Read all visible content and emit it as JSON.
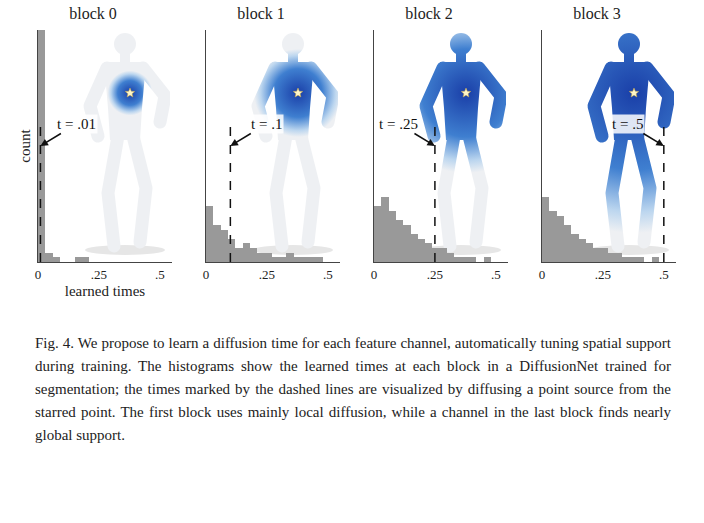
{
  "chart_data": [
    {
      "type": "bar",
      "title": "block 0",
      "xlabel": "learned times",
      "ylabel": "count",
      "bins": [
        0,
        0.03,
        0.06,
        0.09,
        0.12,
        0.15,
        0.18,
        0.21,
        0.24,
        0.27,
        0.3,
        0.33,
        0.36,
        0.39,
        0.42,
        0.45,
        0.48,
        0.51,
        0.54
      ],
      "values": [
        50,
        2,
        1,
        0,
        0,
        1,
        1,
        0,
        0,
        0,
        0,
        0,
        0,
        0,
        0,
        0,
        0,
        0
      ],
      "color": "#999999",
      "xlim": [
        0,
        0.55
      ],
      "xticks": [
        0,
        {
          "value": 0.25,
          "label": ".25"
        },
        {
          "value": 0.5,
          "label": ".5"
        }
      ],
      "ylim": [
        0,
        50
      ],
      "tick_labels": "x",
      "grid": false,
      "marked_time": 0.01,
      "annotation": "t = .01"
    },
    {
      "type": "bar",
      "title": "block 1",
      "bins": [
        0,
        0.03,
        0.06,
        0.09,
        0.12,
        0.15,
        0.18,
        0.21,
        0.24,
        0.27,
        0.3,
        0.33,
        0.36,
        0.39,
        0.42,
        0.45,
        0.48,
        0.51,
        0.54
      ],
      "values": [
        12,
        8,
        7,
        5,
        3,
        4,
        3,
        2,
        2,
        1,
        1,
        2,
        1,
        1,
        1,
        1,
        0,
        0
      ],
      "color": "#999999",
      "xlim": [
        0,
        0.55
      ],
      "xticks": [
        0,
        {
          "value": 0.25,
          "label": ".25"
        },
        {
          "value": 0.5,
          "label": ".5"
        }
      ],
      "ylim": [
        0,
        50
      ],
      "tick_labels": "x",
      "grid": false,
      "marked_time": 0.1,
      "annotation": "t = .1"
    },
    {
      "type": "bar",
      "title": "block 2",
      "bins": [
        0,
        0.03,
        0.06,
        0.09,
        0.12,
        0.15,
        0.18,
        0.21,
        0.24,
        0.27,
        0.3,
        0.33,
        0.36,
        0.39,
        0.42,
        0.45,
        0.48,
        0.51,
        0.54
      ],
      "values": [
        12,
        14,
        11,
        9,
        8,
        6,
        5,
        4,
        3,
        3,
        2,
        1,
        1,
        1,
        0,
        1,
        0,
        0
      ],
      "color": "#999999",
      "xlim": [
        0,
        0.55
      ],
      "xticks": [
        0,
        {
          "value": 0.25,
          "label": ".25"
        },
        {
          "value": 0.5,
          "label": ".5"
        }
      ],
      "ylim": [
        0,
        50
      ],
      "tick_labels": "x",
      "grid": false,
      "marked_time": 0.25,
      "annotation": "t = .25"
    },
    {
      "type": "bar",
      "title": "block 3",
      "bins": [
        0,
        0.03,
        0.06,
        0.09,
        0.12,
        0.15,
        0.18,
        0.21,
        0.24,
        0.27,
        0.3,
        0.33,
        0.36,
        0.39,
        0.42,
        0.45,
        0.48,
        0.51,
        0.54
      ],
      "values": [
        14,
        11,
        10,
        8,
        6,
        5,
        4,
        3,
        3,
        2,
        2,
        1,
        1,
        1,
        0,
        1,
        0,
        0
      ],
      "color": "#999999",
      "xlim": [
        0,
        0.55
      ],
      "xticks": [
        0,
        {
          "value": 0.25,
          "label": ".25"
        },
        {
          "value": 0.5,
          "label": ".5"
        }
      ],
      "ylim": [
        0,
        50
      ],
      "tick_labels": "x",
      "grid": false,
      "marked_time": 0.5,
      "annotation": "t = .5"
    }
  ],
  "caption": "Fig. 4. We propose to learn a diffusion time for each feature channel, automatically tuning spatial support during training. The histograms show the learned times at each block in a DiffusionNet trained for segmentation; the times marked by the dashed lines are visualized by diffusing a point source from the starred point. The first block uses mainly local diffusion, while a channel in the last block finds nearly global support."
}
